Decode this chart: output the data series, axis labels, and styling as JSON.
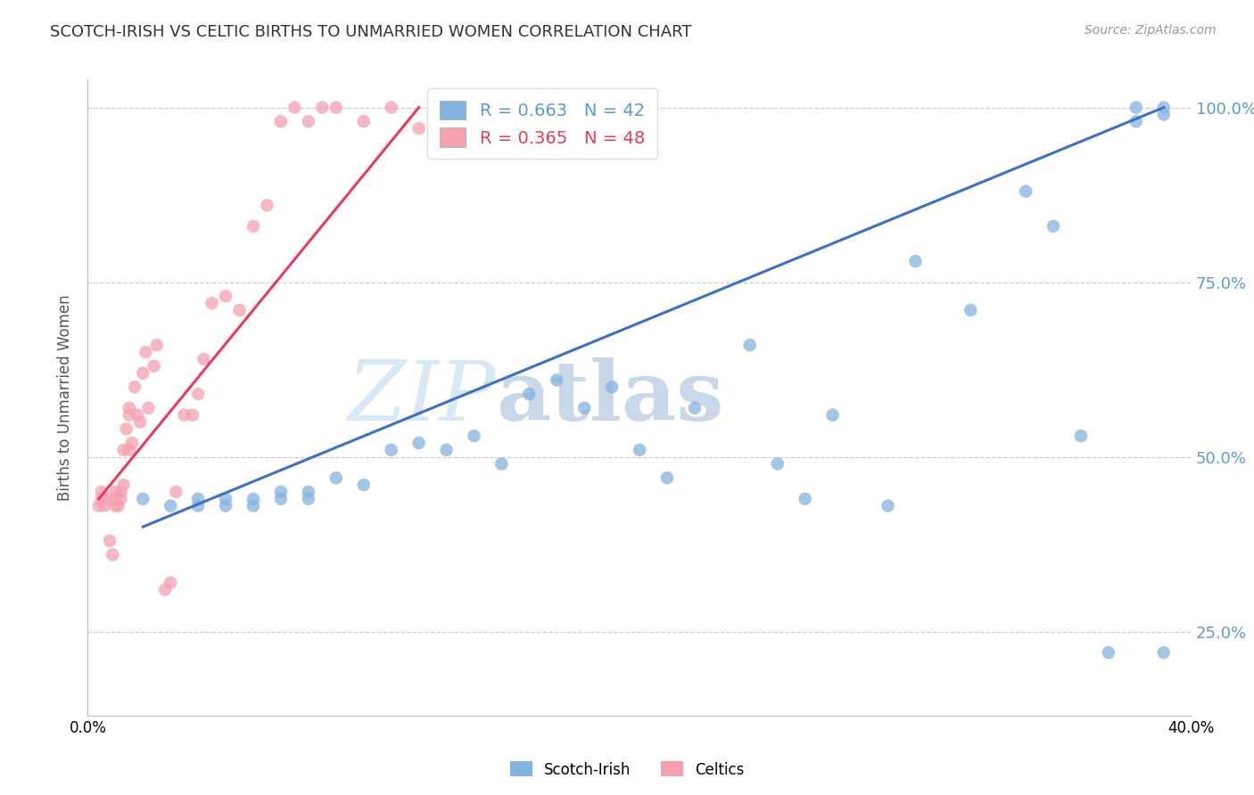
{
  "title": "SCOTCH-IRISH VS CELTIC BIRTHS TO UNMARRIED WOMEN CORRELATION CHART",
  "source": "Source: ZipAtlas.com",
  "ylabel": "Births to Unmarried Women",
  "xmin": 0.0,
  "xmax": 0.4,
  "ymin": 0.13,
  "ymax": 1.04,
  "yticks": [
    0.25,
    0.5,
    0.75,
    1.0
  ],
  "ytick_labels": [
    "25.0%",
    "50.0%",
    "75.0%",
    "100.0%"
  ],
  "xticks": [
    0.0,
    0.1,
    0.2,
    0.3,
    0.4
  ],
  "blue_R": 0.663,
  "blue_N": 42,
  "pink_R": 0.365,
  "pink_N": 48,
  "blue_color": "#85B3E0",
  "pink_color": "#F5A0B0",
  "trend_blue": "#3B6FCC",
  "trend_pink": "#E83A5A",
  "watermark_zip_color": "#D8E8F5",
  "watermark_atlas_color": "#C8D8E8",
  "grid_color": "#CCCCDD",
  "right_axis_color": "#5B9BD5",
  "title_color": "#333333",
  "blue_scatter_x": [
    0.02,
    0.03,
    0.04,
    0.04,
    0.05,
    0.05,
    0.06,
    0.06,
    0.07,
    0.07,
    0.08,
    0.08,
    0.09,
    0.1,
    0.11,
    0.12,
    0.13,
    0.14,
    0.15,
    0.16,
    0.17,
    0.18,
    0.19,
    0.2,
    0.21,
    0.22,
    0.24,
    0.25,
    0.26,
    0.27,
    0.29,
    0.3,
    0.32,
    0.34,
    0.35,
    0.36,
    0.37,
    0.38,
    0.38,
    0.39,
    0.39,
    0.39
  ],
  "blue_scatter_y": [
    0.44,
    0.43,
    0.43,
    0.44,
    0.43,
    0.44,
    0.43,
    0.44,
    0.44,
    0.45,
    0.44,
    0.45,
    0.47,
    0.46,
    0.51,
    0.52,
    0.51,
    0.53,
    0.49,
    0.59,
    0.61,
    0.57,
    0.6,
    0.51,
    0.47,
    0.57,
    0.66,
    0.49,
    0.44,
    0.56,
    0.43,
    0.78,
    0.71,
    0.88,
    0.83,
    0.53,
    0.22,
    0.98,
    1.0,
    0.99,
    1.0,
    0.22
  ],
  "pink_scatter_x": [
    0.004,
    0.005,
    0.005,
    0.006,
    0.007,
    0.008,
    0.009,
    0.01,
    0.01,
    0.01,
    0.011,
    0.012,
    0.012,
    0.013,
    0.013,
    0.014,
    0.015,
    0.015,
    0.015,
    0.016,
    0.017,
    0.018,
    0.019,
    0.02,
    0.021,
    0.022,
    0.024,
    0.025,
    0.028,
    0.03,
    0.032,
    0.035,
    0.038,
    0.04,
    0.042,
    0.045,
    0.05,
    0.055,
    0.06,
    0.065,
    0.07,
    0.075,
    0.08,
    0.085,
    0.09,
    0.1,
    0.11,
    0.12
  ],
  "pink_scatter_y": [
    0.43,
    0.44,
    0.45,
    0.43,
    0.44,
    0.38,
    0.36,
    0.43,
    0.44,
    0.45,
    0.43,
    0.44,
    0.45,
    0.46,
    0.51,
    0.54,
    0.51,
    0.56,
    0.57,
    0.52,
    0.6,
    0.56,
    0.55,
    0.62,
    0.65,
    0.57,
    0.63,
    0.66,
    0.31,
    0.32,
    0.45,
    0.56,
    0.56,
    0.59,
    0.64,
    0.72,
    0.73,
    0.71,
    0.83,
    0.86,
    0.98,
    1.0,
    0.98,
    1.0,
    1.0,
    0.98,
    1.0,
    0.97
  ],
  "blue_trend_x": [
    0.02,
    0.39
  ],
  "blue_trend_y": [
    0.4,
    1.0
  ],
  "pink_trend_x": [
    0.004,
    0.12
  ],
  "pink_trend_y": [
    0.44,
    1.0
  ]
}
